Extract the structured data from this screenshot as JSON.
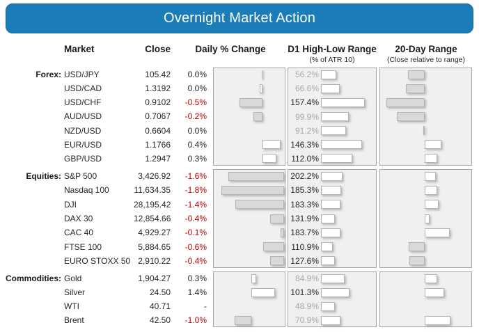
{
  "title": "Overnight Market Action",
  "columns": {
    "market": "Market",
    "close": "Close",
    "daily_change": "Daily % Change",
    "d1_range": "D1 High-Low Range",
    "d1_range_sub": "(% of ATR 10)",
    "day20_range": "20-Day Range",
    "day20_range_sub": "(Close relative to range)"
  },
  "colors": {
    "banner_bg": "#1b7db8",
    "banner_text": "#ffffff",
    "text": "#262626",
    "negative_text": "#c00000",
    "muted_text": "#a9a9a9",
    "panel_bg": "#f0f0f0",
    "panel_border": "#a6a6a6",
    "bar_negative_fill": "#d9d9d9",
    "bar_positive_fill": "#ffffff",
    "bar_border": "#b3b3b3"
  },
  "groups": [
    {
      "label": "Forex:",
      "rows": [
        {
          "market": "USD/JPY",
          "close": "105.42",
          "daily_text": "0.0%",
          "daily_value": 0.0,
          "zero_mark": "line",
          "atr_text": "56.2%",
          "atr_value": 56.2,
          "range20_value": -40
        },
        {
          "market": "USD/CAD",
          "close": "1.3192",
          "daily_text": "0.0%",
          "daily_value": 0.0,
          "zero_mark": "small",
          "atr_text": "66.6%",
          "atr_value": 66.6,
          "range20_value": -45
        },
        {
          "market": "USD/CHF",
          "close": "0.9102",
          "daily_text": "-0.5%",
          "daily_value": -0.5,
          "atr_text": "157.4%",
          "atr_value": 157.4,
          "range20_value": -92
        },
        {
          "market": "AUD/USD",
          "close": "0.7067",
          "daily_text": "-0.2%",
          "daily_value": -0.2,
          "atr_text": "99.9%",
          "atr_value": 99.9,
          "range20_value": -67
        },
        {
          "market": "NZD/USD",
          "close": "0.6604",
          "daily_text": "0.0%",
          "daily_value": 0.0,
          "zero_mark": "none",
          "atr_text": "91.2%",
          "atr_value": 91.2,
          "range20_value": -3
        },
        {
          "market": "EUR/USD",
          "close": "1.1766",
          "daily_text": "0.4%",
          "daily_value": 0.4,
          "atr_text": "146.3%",
          "atr_value": 146.3,
          "range20_value": 40
        },
        {
          "market": "GBP/USD",
          "close": "1.2947",
          "daily_text": "0.3%",
          "daily_value": 0.3,
          "atr_text": "112.0%",
          "atr_value": 112.0,
          "range20_value": 30
        }
      ]
    },
    {
      "label": "Equities:",
      "rows": [
        {
          "market": "S&P 500",
          "close": "3,426.92",
          "daily_text": "-1.6%",
          "daily_value": -1.6,
          "atr_text": "202.2%",
          "atr_value": 202.2,
          "range20_value": 27
        },
        {
          "market": "Nasdaq 100",
          "close": "11,634.35",
          "daily_text": "-1.8%",
          "daily_value": -1.8,
          "atr_text": "185.3%",
          "atr_value": 185.3,
          "range20_value": 30
        },
        {
          "market": "DJI",
          "close": "28,195.42",
          "daily_text": "-1.4%",
          "daily_value": -1.4,
          "atr_text": "183.3%",
          "atr_value": 183.3,
          "range20_value": 33
        },
        {
          "market": "DAX 30",
          "close": "12,854.66",
          "daily_text": "-0.4%",
          "daily_value": -0.4,
          "atr_text": "131.9%",
          "atr_value": 131.9,
          "range20_value": 12
        },
        {
          "market": "CAC 40",
          "close": "4,929.27",
          "daily_text": "-0.1%",
          "daily_value": -0.1,
          "atr_text": "183.7%",
          "atr_value": 183.7,
          "range20_value": 60
        },
        {
          "market": "FTSE 100",
          "close": "5,884.65",
          "daily_text": "-0.6%",
          "daily_value": -0.6,
          "atr_text": "110.9%",
          "atr_value": 110.9,
          "range20_value": -38
        },
        {
          "market": "EURO STOXX 50",
          "close": "2,910.22",
          "daily_text": "-0.4%",
          "daily_value": -0.4,
          "atr_text": "127.6%",
          "atr_value": 127.6,
          "range20_value": -37
        }
      ]
    },
    {
      "label": "Commodities:",
      "rows": [
        {
          "market": "Gold",
          "close": "1,904.27",
          "daily_text": "0.3%",
          "daily_value": 0.3,
          "atr_text": "84.9%",
          "atr_value": 84.9,
          "range20_value": 30
        },
        {
          "market": "Silver",
          "close": "24.50",
          "daily_text": "1.4%",
          "daily_value": 1.4,
          "atr_text": "101.3%",
          "atr_value": 101.3,
          "range20_value": 47
        },
        {
          "market": "WTI",
          "close": "40.71",
          "daily_text": "-",
          "daily_value": null,
          "atr_text": "48.9%",
          "atr_value": 48.9,
          "range20_value": null
        },
        {
          "market": "Brent",
          "close": "42.50",
          "daily_text": "-1.0%",
          "daily_value": -1.0,
          "atr_text": "70.9%",
          "atr_value": 70.9,
          "range20_value": 62
        }
      ]
    }
  ],
  "chart_data": [
    {
      "type": "bar",
      "title": "Daily % Change",
      "orientation": "horizontal",
      "groups": [
        "Forex",
        "Equities",
        "Commodities"
      ],
      "categories": [
        "USD/JPY",
        "USD/CAD",
        "USD/CHF",
        "AUD/USD",
        "NZD/USD",
        "EUR/USD",
        "GBP/USD",
        "S&P 500",
        "Nasdaq 100",
        "DJI",
        "DAX 30",
        "CAC 40",
        "FTSE 100",
        "EURO STOXX 50",
        "Gold",
        "Silver",
        "WTI",
        "Brent"
      ],
      "values": [
        0.0,
        0.0,
        -0.5,
        -0.2,
        0.0,
        0.4,
        0.3,
        -1.6,
        -1.8,
        -1.4,
        -0.4,
        -0.1,
        -0.6,
        -0.4,
        0.3,
        1.4,
        null,
        -1.0
      ],
      "style_note": "negative bars gray filled extending left of zero axis, positive bars white extending right"
    },
    {
      "type": "bar",
      "title": "D1 High-Low Range (% of ATR 10)",
      "orientation": "horizontal",
      "categories": [
        "USD/JPY",
        "USD/CAD",
        "USD/CHF",
        "AUD/USD",
        "NZD/USD",
        "EUR/USD",
        "GBP/USD",
        "S&P 500",
        "Nasdaq 100",
        "DJI",
        "DAX 30",
        "CAC 40",
        "FTSE 100",
        "EURO STOXX 50",
        "Gold",
        "Silver",
        "WTI",
        "Brent"
      ],
      "values": [
        56.2,
        66.6,
        157.4,
        99.9,
        91.2,
        146.3,
        112.0,
        202.2,
        185.3,
        183.3,
        131.9,
        183.7,
        110.9,
        127.6,
        84.9,
        101.3,
        48.9,
        70.9
      ],
      "style_note": "value labels gray when below 100%, black when 100% or above; white bars from zero"
    },
    {
      "type": "bar",
      "title": "20-Day Range (Close relative to range)",
      "orientation": "horizontal",
      "categories": [
        "USD/JPY",
        "USD/CAD",
        "USD/CHF",
        "AUD/USD",
        "NZD/USD",
        "EUR/USD",
        "GBP/USD",
        "S&P 500",
        "Nasdaq 100",
        "DJI",
        "DAX 30",
        "CAC 40",
        "FTSE 100",
        "EURO STOXX 50",
        "Gold",
        "Silver",
        "WTI",
        "Brent"
      ],
      "values": [
        -40,
        -45,
        -92,
        -67,
        -3,
        40,
        30,
        27,
        30,
        33,
        12,
        60,
        -38,
        -37,
        30,
        47,
        null,
        62
      ],
      "axis_range_est": [
        -100,
        100
      ],
      "note": "values not labeled in image; estimated from bar lengths relative to zero axis"
    }
  ]
}
